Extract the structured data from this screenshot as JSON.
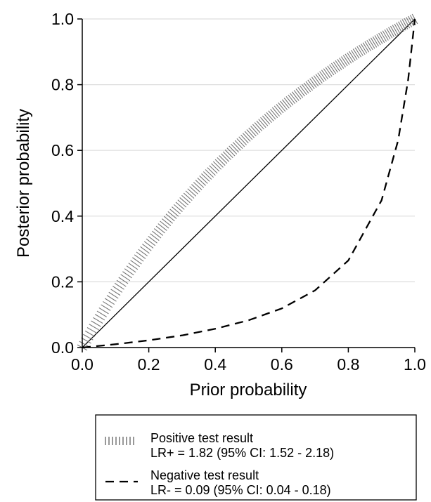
{
  "chart_data": {
    "type": "line",
    "title": "",
    "xlabel": "Prior probability",
    "ylabel": "Posterior probability",
    "xlim": [
      0,
      1
    ],
    "ylim": [
      0,
      1
    ],
    "grid": "horizontal",
    "x_ticks": [
      "0.0",
      "0.2",
      "0.4",
      "0.6",
      "0.8",
      "1.0"
    ],
    "y_ticks": [
      "0.0",
      "0.2",
      "0.4",
      "0.6",
      "0.8",
      "1.0"
    ],
    "reference_line": "y = x",
    "legend_position": "bottom",
    "series": [
      {
        "name": "Positive test result",
        "detail": "LR+ = 1.82 (95% CI: 1.52 - 2.18)",
        "likelihood_ratio": 1.82,
        "style": "hatched",
        "x": [
          0,
          0.05,
          0.1,
          0.2,
          0.3,
          0.4,
          0.5,
          0.6,
          0.7,
          0.8,
          0.9,
          1.0
        ],
        "y": [
          0,
          0.087,
          0.168,
          0.313,
          0.438,
          0.548,
          0.645,
          0.732,
          0.809,
          0.879,
          0.942,
          1.0
        ]
      },
      {
        "name": "Negative test result",
        "detail": "LR- = 0.09 (95% CI: 0.04 - 0.18)",
        "likelihood_ratio": 0.09,
        "style": "dashed",
        "x": [
          0,
          0.1,
          0.2,
          0.3,
          0.4,
          0.5,
          0.6,
          0.7,
          0.8,
          0.9,
          0.95,
          0.98,
          1.0
        ],
        "y": [
          0,
          0.01,
          0.022,
          0.037,
          0.057,
          0.083,
          0.119,
          0.174,
          0.265,
          0.448,
          0.631,
          0.815,
          1.0
        ]
      }
    ]
  }
}
